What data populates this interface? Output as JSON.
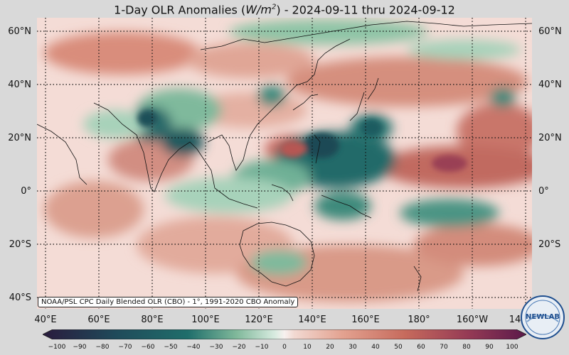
{
  "title": {
    "prefix": "1-Day OLR Anomalies (",
    "unit_var": "W/m",
    "unit_exp": "2",
    "suffix": ") - 2024-09-11 thru 2024-09-12"
  },
  "lat_labels_left": [
    "60°N",
    "40°N",
    "20°N",
    "0°",
    "20°S",
    "40°S"
  ],
  "lat_labels_right": [
    "60°N",
    "40°N",
    "20°N",
    "0°",
    "20°S"
  ],
  "lon_labels": [
    "40°E",
    "60°E",
    "80°E",
    "100°E",
    "120°E",
    "140°E",
    "160°E",
    "180°",
    "160°W",
    "14"
  ],
  "source_note": "NOAA/PSL CPC Daily Blended OLR (CBO) - 1°, 1991-2020 CBO Anomaly",
  "colorbar": {
    "ticks": [
      "−100",
      "−90",
      "−80",
      "−70",
      "−60",
      "−50",
      "−40",
      "−30",
      "−20",
      "−10",
      "0",
      "10",
      "20",
      "30",
      "40",
      "50",
      "60",
      "70",
      "80",
      "90",
      "100"
    ],
    "colors": {
      "strong_negative": "#2a1b3d",
      "negative": "#1f6e6b",
      "weak_negative": "#7fb89a",
      "neutral": "#f7f1ef",
      "weak_positive": "#e3a290",
      "positive": "#c66a5c",
      "strong_positive": "#5b1a4a"
    }
  },
  "logo": {
    "text": "NEWLAB"
  }
}
